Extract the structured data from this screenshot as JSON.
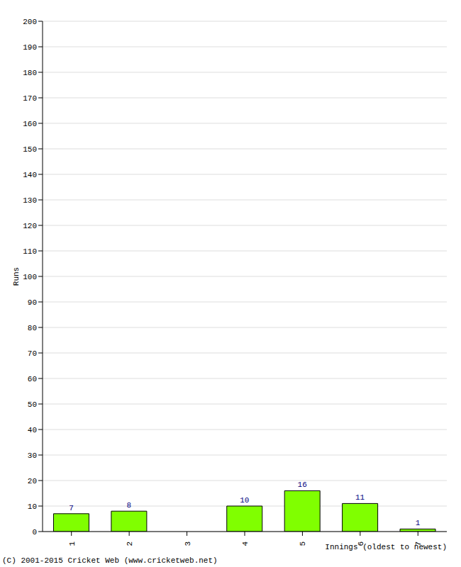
{
  "chart_data": {
    "type": "bar",
    "x_label": "Innings (oldest to newest)",
    "y_label": "Runs",
    "annotations": [
      "(C) 2001-2015 Cricket Web (www.cricketweb.net)"
    ],
    "categories": [
      "1",
      "2",
      "3",
      "4",
      "5",
      "6",
      "7"
    ],
    "values": [
      7,
      8,
      0,
      10,
      16,
      11,
      1
    ],
    "color": "#80ff00",
    "ylim": [
      0,
      200
    ],
    "yticks": [
      0,
      10,
      20,
      30,
      40,
      50,
      60,
      70,
      80,
      90,
      100,
      110,
      120,
      130,
      140,
      150,
      160,
      170,
      180,
      190,
      200
    ],
    "grid": true,
    "data_labels": true
  }
}
